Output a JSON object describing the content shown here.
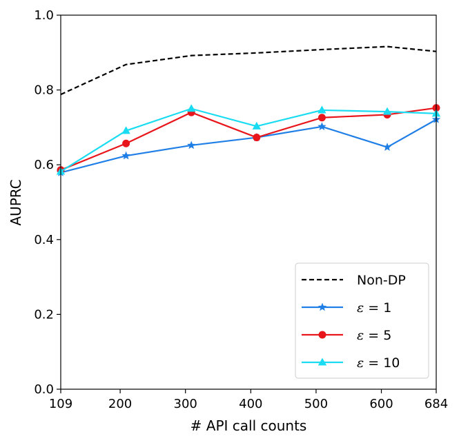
{
  "chart_data": {
    "type": "line",
    "title": "",
    "xlabel": "# API call counts",
    "ylabel": "AUPRC",
    "xlim": [
      109,
      684
    ],
    "ylim": [
      0.0,
      1.0
    ],
    "xticks": [
      109,
      200,
      300,
      400,
      500,
      600,
      684
    ],
    "xtick_labels": [
      "109",
      "200",
      "300",
      "400",
      "500",
      "600",
      "684"
    ],
    "yticks": [
      0.0,
      0.2,
      0.4,
      0.6,
      0.8,
      1.0
    ],
    "ytick_labels": [
      "0.0",
      "0.2",
      "0.4",
      "0.6",
      "0.8",
      "1.0"
    ],
    "grid": false,
    "legend_position": "lower-right",
    "x": [
      109,
      209,
      309,
      409,
      509,
      609,
      684
    ],
    "series": [
      {
        "name": "Non-DP",
        "legend_label": "Non-DP",
        "values": [
          0.788,
          0.868,
          0.892,
          0.899,
          0.908,
          0.916,
          0.903
        ],
        "color": "#000000",
        "style": "dashed",
        "marker": "none"
      },
      {
        "name": "epsilon = 1",
        "legend_symbol": "ε",
        "legend_rest": " = 1",
        "values": [
          0.579,
          0.624,
          0.652,
          0.673,
          0.702,
          0.647,
          0.721
        ],
        "color": "#1f7fe6",
        "style": "solid",
        "marker": "star"
      },
      {
        "name": "epsilon = 5",
        "legend_symbol": "ε",
        "legend_rest": " = 5",
        "values": [
          0.586,
          0.657,
          0.74,
          0.673,
          0.726,
          0.734,
          0.752
        ],
        "color": "#e8151b",
        "style": "solid",
        "marker": "circle"
      },
      {
        "name": "epsilon = 10",
        "legend_symbol": "ε",
        "legend_rest": " = 10",
        "values": [
          0.582,
          0.691,
          0.75,
          0.703,
          0.746,
          0.742,
          0.737
        ],
        "color": "#19dcf2",
        "style": "solid",
        "marker": "triangle"
      }
    ]
  }
}
